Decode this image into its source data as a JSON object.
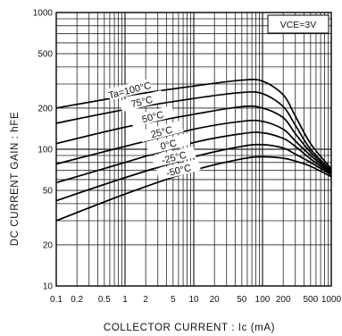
{
  "chart_data": {
    "type": "line",
    "title": "",
    "xlabel": "COLLECTOR CURRENT : Ic (mA)",
    "ylabel": "DC CURRENT GAIN : hFE",
    "xscale": "log",
    "yscale": "log",
    "xlim": [
      0.1,
      1000
    ],
    "ylim": [
      10,
      1000
    ],
    "grid": true,
    "xticks": [
      0.1,
      0.2,
      0.5,
      1,
      2,
      5,
      10,
      20,
      50,
      100,
      200,
      500,
      1000
    ],
    "xtick_labels": [
      "0.1",
      "0.2",
      "0.5",
      "1",
      "2",
      "5",
      "10",
      "20",
      "50",
      "100",
      "200",
      "500",
      "1000"
    ],
    "yticks": [
      10,
      20,
      50,
      100,
      200,
      500,
      1000
    ],
    "ytick_labels": [
      "10",
      "20",
      "50",
      "100",
      "200",
      "500",
      "1000"
    ],
    "condition_label": "VCE=3V",
    "x": [
      0.1,
      1,
      10,
      50,
      100,
      200,
      300,
      500,
      1000
    ],
    "series": [
      {
        "name": "Ta=100°C",
        "values": [
          200,
          245,
          290,
          320,
          315,
          250,
          175,
          110,
          72
        ]
      },
      {
        "name": "75°C",
        "values": [
          155,
          195,
          235,
          260,
          255,
          205,
          150,
          100,
          70
        ]
      },
      {
        "name": "50°C",
        "values": [
          110,
          145,
          180,
          205,
          200,
          170,
          130,
          95,
          68
        ]
      },
      {
        "name": "25°C",
        "values": [
          78,
          105,
          140,
          160,
          160,
          140,
          115,
          90,
          67
        ]
      },
      {
        "name": "0°C",
        "values": [
          57,
          80,
          112,
          130,
          132,
          120,
          105,
          85,
          66
        ]
      },
      {
        "name": "-25°C",
        "values": [
          42,
          62,
          88,
          105,
          108,
          102,
          92,
          80,
          65
        ]
      },
      {
        "name": "-50°C",
        "values": [
          30,
          47,
          70,
          85,
          88,
          86,
          82,
          75,
          63
        ]
      }
    ]
  }
}
